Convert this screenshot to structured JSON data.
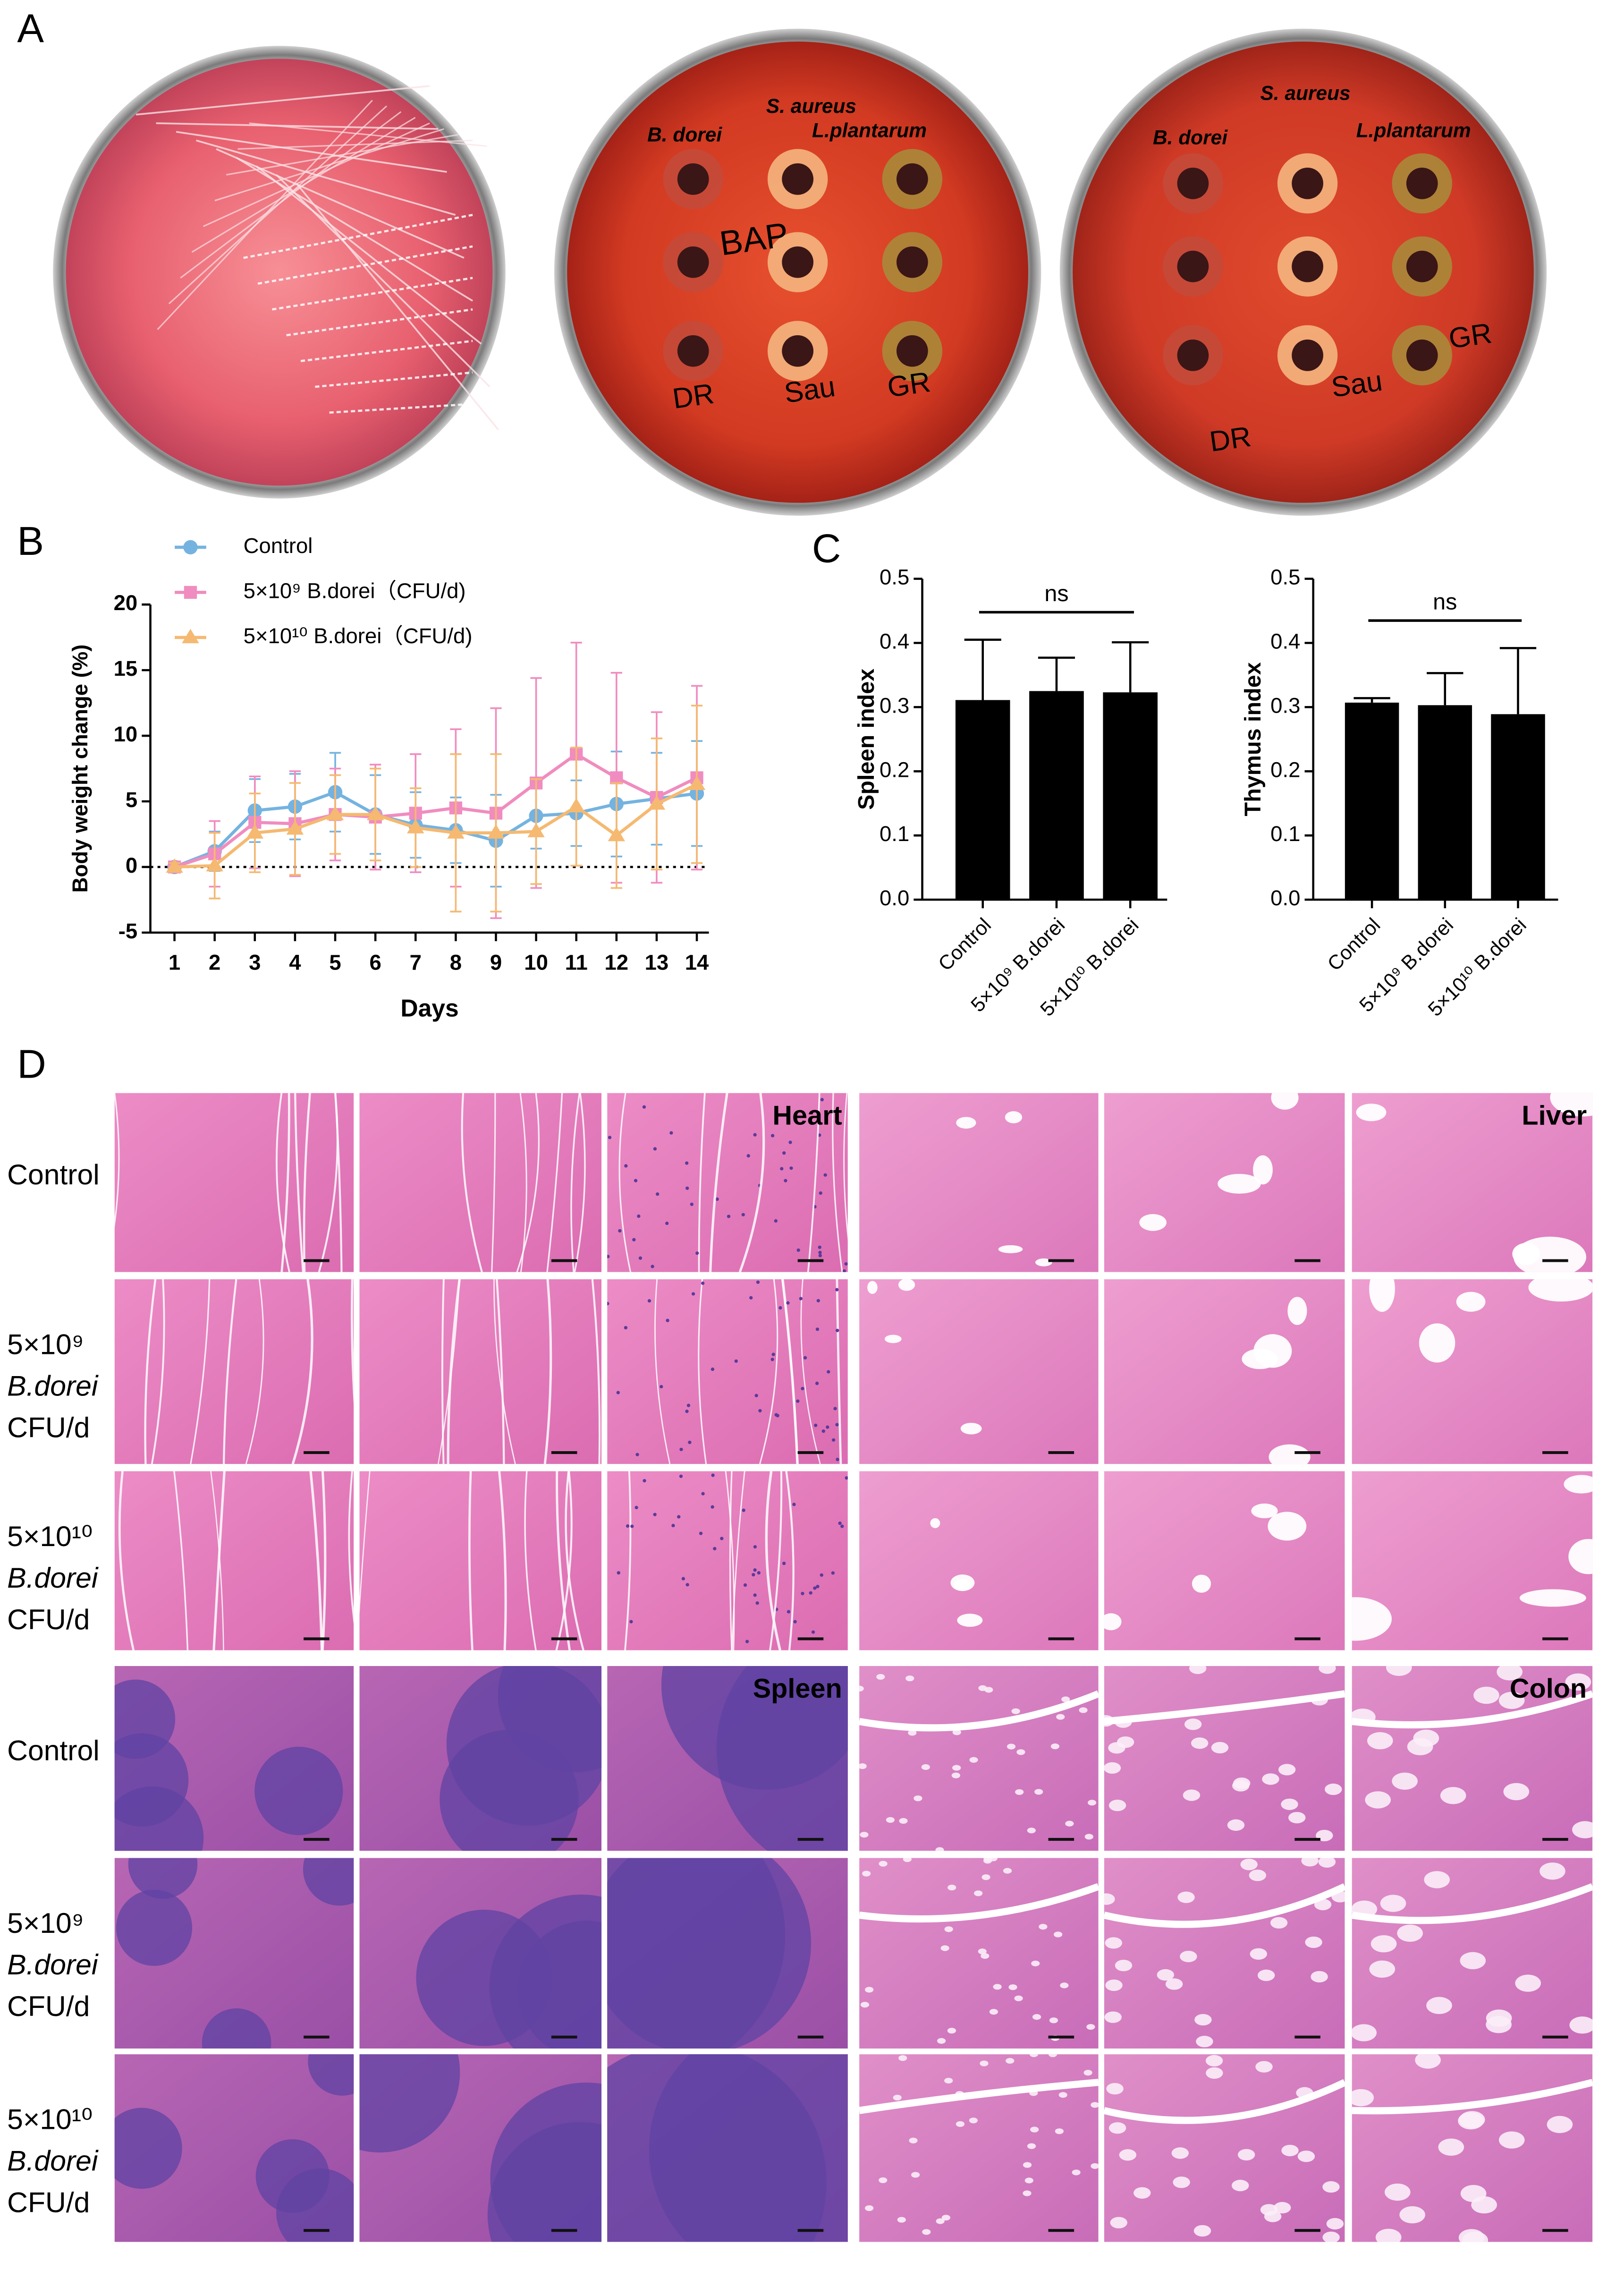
{
  "panel_labels": [
    "A",
    "B",
    "C",
    "D"
  ],
  "plates": [
    {
      "labels": [
        "B. dorei",
        "S. aureus",
        "L.plantarum"
      ],
      "handwriting": [
        "BAP",
        "DR",
        "Sau",
        "GR"
      ]
    },
    {
      "labels": [
        "B. dorei",
        "S. aureus",
        "L.plantarum"
      ],
      "handwriting": [
        "DR",
        "Sau",
        "GR"
      ]
    }
  ],
  "chart_data": [
    {
      "type": "line",
      "ylabel": "Body weight change (%)",
      "xlabel": "Days",
      "x": [
        1,
        2,
        3,
        4,
        5,
        6,
        7,
        8,
        9,
        10,
        11,
        12,
        13,
        14
      ],
      "xlim": [
        0.4,
        14.3
      ],
      "xticks": [
        1,
        2,
        3,
        4,
        5,
        6,
        7,
        8,
        9,
        10,
        11,
        12,
        13,
        14
      ],
      "ylim": [
        -5,
        20
      ],
      "yticks": [
        -5,
        0,
        5,
        10,
        15,
        20
      ],
      "zero_line": true,
      "legend": "upper left",
      "series": [
        {
          "name": "Control",
          "color": "#74b3e0",
          "marker": "circle",
          "values": [
            0,
            1.2,
            4.3,
            4.6,
            5.7,
            4.0,
            3.2,
            2.8,
            2.0,
            3.9,
            4.1,
            4.8,
            5.2,
            5.6
          ],
          "errors": [
            0.3,
            1.5,
            2.4,
            2.5,
            3.0,
            3.0,
            2.5,
            2.5,
            3.5,
            2.5,
            2.5,
            4.0,
            3.5,
            4.0
          ]
        },
        {
          "name": "5×10⁹ B.dorei（CFU/d)",
          "color": "#f08cbf",
          "marker": "square",
          "values": [
            0,
            1.0,
            3.4,
            3.3,
            4.0,
            3.8,
            4.1,
            4.5,
            4.1,
            6.4,
            8.6,
            6.8,
            5.3,
            6.8
          ],
          "errors": [
            0.3,
            2.5,
            3.5,
            4.0,
            3.5,
            4.0,
            4.5,
            6.0,
            8.0,
            8.0,
            8.5,
            8.0,
            6.5,
            7.0
          ]
        },
        {
          "name": "5×10¹⁰ B.dorei（CFU/d)",
          "color": "#f5b971",
          "marker": "triangle",
          "values": [
            0,
            0.1,
            2.6,
            2.9,
            4.0,
            4.0,
            3.0,
            2.6,
            2.6,
            2.7,
            4.6,
            2.4,
            4.8,
            6.3
          ],
          "errors": [
            0.3,
            2.5,
            3.0,
            3.5,
            3.0,
            3.5,
            3.0,
            6.0,
            6.0,
            4.0,
            4.5,
            4.0,
            5.0,
            6.0
          ]
        }
      ]
    },
    {
      "type": "bar",
      "ylabel": "Spleen index",
      "categories": [
        "Control",
        "5×10⁹ B.dorei",
        "5×10¹⁰ B.dorei"
      ],
      "values": [
        0.311,
        0.325,
        0.323
      ],
      "errors": [
        0.094,
        0.052,
        0.078
      ],
      "color": "#000000",
      "ylim": [
        0,
        0.5
      ],
      "yticks": [
        {
          "value": 0,
          "label": "0.0"
        },
        0.1,
        0.2,
        0.3,
        0.4,
        0.5
      ],
      "annotation": "ns"
    },
    {
      "type": "bar",
      "ylabel": "Thymus index",
      "categories": [
        "Control",
        "5×10⁹ B.dorei",
        "5×10¹⁰ B.dorei"
      ],
      "values": [
        0.307,
        0.303,
        0.289
      ],
      "errors": [
        0.007,
        0.05,
        0.103
      ],
      "color": "#000000",
      "ylim": [
        0,
        0.5
      ],
      "yticks": [
        {
          "value": 0,
          "label": "0.0"
        },
        0.1,
        0.2,
        0.3,
        0.4,
        0.5
      ],
      "annotation": "ns"
    }
  ],
  "histology": [
    {
      "tissues": [
        "Heart",
        "Liver"
      ],
      "row_labels": [
        [
          "Control"
        ],
        [
          "5×10⁹",
          "B.dorei",
          "CFU/d"
        ],
        [
          "5×10¹⁰",
          "B.dorei",
          "CFU/d"
        ]
      ]
    },
    {
      "tissues": [
        "Spleen",
        "Colon"
      ],
      "row_labels": [
        [
          "Control"
        ],
        [
          "5×10⁹",
          "B.dorei",
          "CFU/d"
        ],
        [
          "5×10¹⁰",
          "B.dorei",
          "CFU/d"
        ]
      ]
    }
  ]
}
